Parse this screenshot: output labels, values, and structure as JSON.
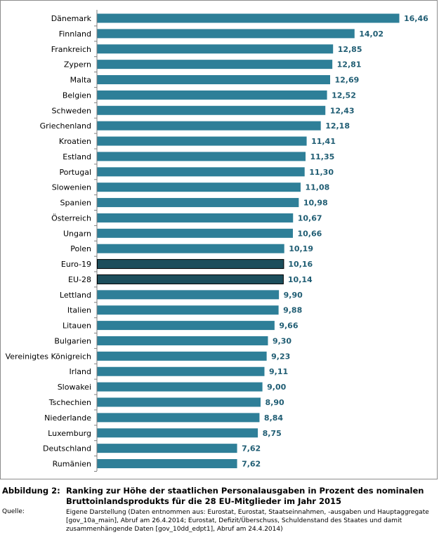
{
  "chart_data": {
    "type": "bar",
    "orientation": "horizontal",
    "categories": [
      "Dänemark",
      "Finnland",
      "Frankreich",
      "Zypern",
      "Malta",
      "Belgien",
      "Schweden",
      "Griechenland",
      "Kroatien",
      "Estland",
      "Portugal",
      "Slowenien",
      "Spanien",
      "Österreich",
      "Ungarn",
      "Polen",
      "Euro-19",
      "EU-28",
      "Lettland",
      "Italien",
      "Litauen",
      "Bulgarien",
      "Vereinigtes Königreich",
      "Irland",
      "Slowakei",
      "Tschechien",
      "Niederlande",
      "Luxemburg",
      "Deutschland",
      "Rumänien"
    ],
    "values": [
      16.46,
      14.02,
      12.85,
      12.81,
      12.69,
      12.52,
      12.43,
      12.18,
      11.41,
      11.35,
      11.3,
      11.08,
      10.98,
      10.67,
      10.66,
      10.19,
      10.16,
      10.14,
      9.9,
      9.88,
      9.66,
      9.3,
      9.23,
      9.11,
      9.0,
      8.9,
      8.84,
      8.75,
      7.62,
      7.62
    ],
    "value_labels": [
      "16,46",
      "14,02",
      "12,85",
      "12,81",
      "12,69",
      "12,52",
      "12,43",
      "12,18",
      "11,41",
      "11,35",
      "11,30",
      "11,08",
      "10,98",
      "10,67",
      "10,66",
      "10,19",
      "10,16",
      "10,14",
      "9,90",
      "9,88",
      "9,66",
      "9,30",
      "9,23",
      "9,11",
      "9,00",
      "8,90",
      "8,84",
      "8,75",
      "7,62",
      "7,62"
    ],
    "highlighted_categories": [
      "Euro-19",
      "EU-28"
    ],
    "colors": {
      "bar": "#2e7f98",
      "highlight": "#1c4e5c",
      "label": "#215e74"
    },
    "xlim": [
      0,
      16.46
    ],
    "grid": false,
    "title": "",
    "xlabel": "",
    "ylabel": ""
  },
  "caption": {
    "label": "Abbildung 2:",
    "title": "Ranking zur Höhe der staatlichen Personalausgaben in Prozent des nominalen Bruttoinlandsprodukts für die 28 EU-Mitglieder im Jahr 2015",
    "source_label": "Quelle:",
    "source_text": "Eigene Darstellung (Daten entnommen aus: Eurostat, Eurostat, Staatseinnahmen, -ausgaben und Hauptaggregate [gov_10a_main], Abruf am 26.4.2014; Eurostat, Defizit/Überschuss, Schuldenstand des Staates und damit zusammenhängende Daten [gov_10dd_edpt1], Abruf am 24.4.2014)"
  }
}
